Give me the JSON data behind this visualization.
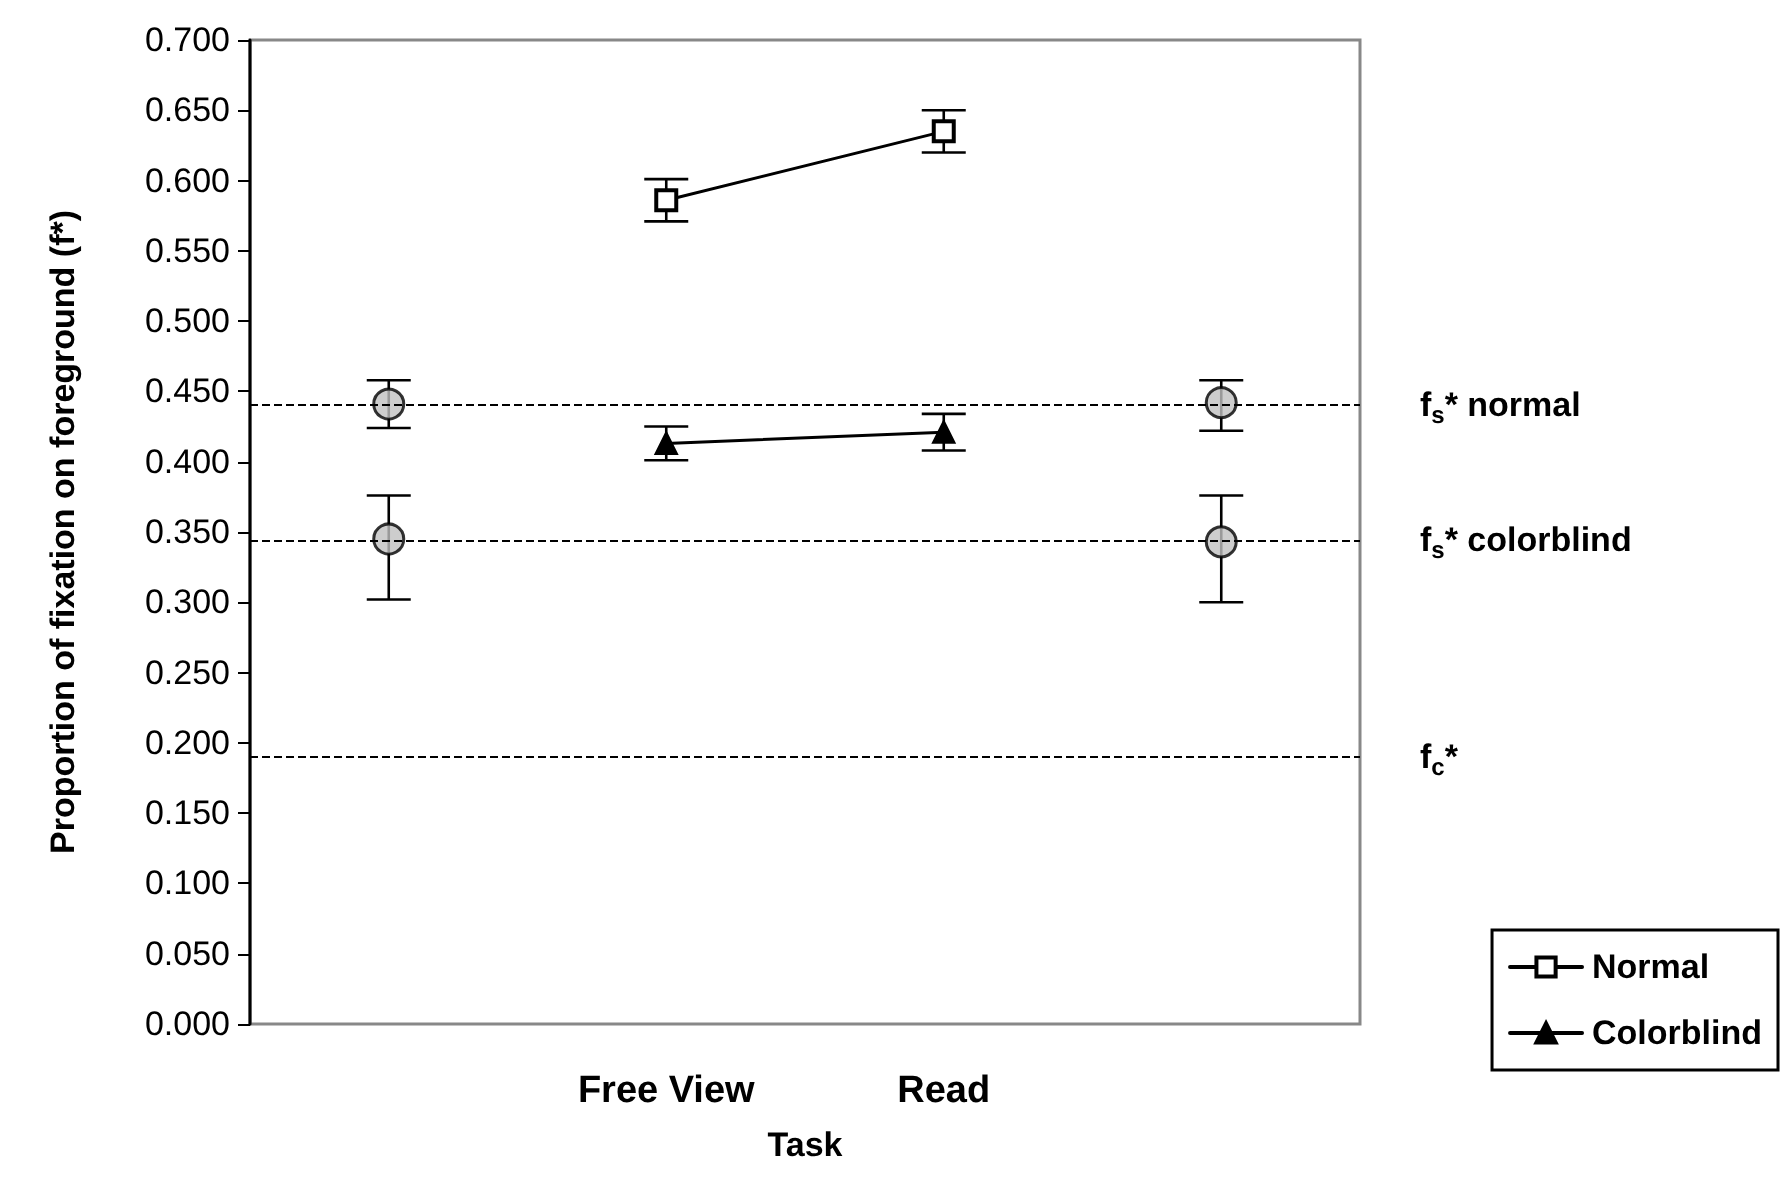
{
  "chart_data": {
    "type": "line",
    "xlabel": "Task",
    "ylabel": "Proportion of fixation on foreground (f*)",
    "categories": [
      null,
      "Free View",
      "Read",
      null
    ],
    "ylim": [
      0,
      0.7
    ],
    "yticks": [
      {
        "value": 0,
        "label": "0.000"
      },
      {
        "value": 0.05,
        "label": "0.050"
      },
      {
        "value": 0.1,
        "label": "0.100"
      },
      {
        "value": 0.15,
        "label": "0.150"
      },
      {
        "value": 0.2,
        "label": "0.200"
      },
      {
        "value": 0.25,
        "label": "0.250"
      },
      {
        "value": 0.3,
        "label": "0.300"
      },
      {
        "value": 0.35,
        "label": "0.350"
      },
      {
        "value": 0.4,
        "label": "0.400"
      },
      {
        "value": 0.45,
        "label": "0.450"
      },
      {
        "value": 0.5,
        "label": "0.500"
      },
      {
        "value": 0.55,
        "label": "0.550"
      },
      {
        "value": 0.6,
        "label": "0.600"
      },
      {
        "value": 0.65,
        "label": "0.650"
      },
      {
        "value": 0.7,
        "label": "0.700"
      }
    ],
    "series": [
      {
        "name": "Normal",
        "marker": "square",
        "color": "#000000",
        "values": [
          null,
          0.586,
          0.635,
          null
        ],
        "errors": [
          null,
          0.015,
          0.015,
          null
        ]
      },
      {
        "name": "Colorblind",
        "marker": "triangle",
        "color": "#000000",
        "values": [
          null,
          0.413,
          0.421,
          null
        ],
        "errors": [
          null,
          0.012,
          0.013,
          null
        ]
      },
      {
        "type": "scatter",
        "marker": "circle",
        "color": "#c0c0c0",
        "values": [
          0.441,
          null,
          null,
          0.442
        ],
        "errors": [
          0.017,
          null,
          null,
          [
            0.422,
            0.458
          ]
        ]
      },
      {
        "type": "scatter",
        "marker": "circle",
        "color": "#c0c0c0",
        "values": [
          0.345,
          null,
          null,
          0.343
        ],
        "errors": [
          [
            0.302,
            0.376
          ],
          null,
          null,
          [
            0.3,
            0.376
          ]
        ]
      }
    ],
    "ref_lines": [
      {
        "axis": "y",
        "value": 0.44,
        "label": "f$_{s}$* normal",
        "color": "#000000",
        "line_style": "dashed"
      },
      {
        "axis": "y",
        "value": 0.344,
        "label": "f$_{s}$* colorblind",
        "color": "#000000",
        "line_style": "dashed"
      },
      {
        "axis": "y",
        "value": 0.19,
        "label": "f$_{c}$*",
        "color": "#000000",
        "line_style": "dashed"
      }
    ],
    "grid": false,
    "legend": "bottom right"
  }
}
